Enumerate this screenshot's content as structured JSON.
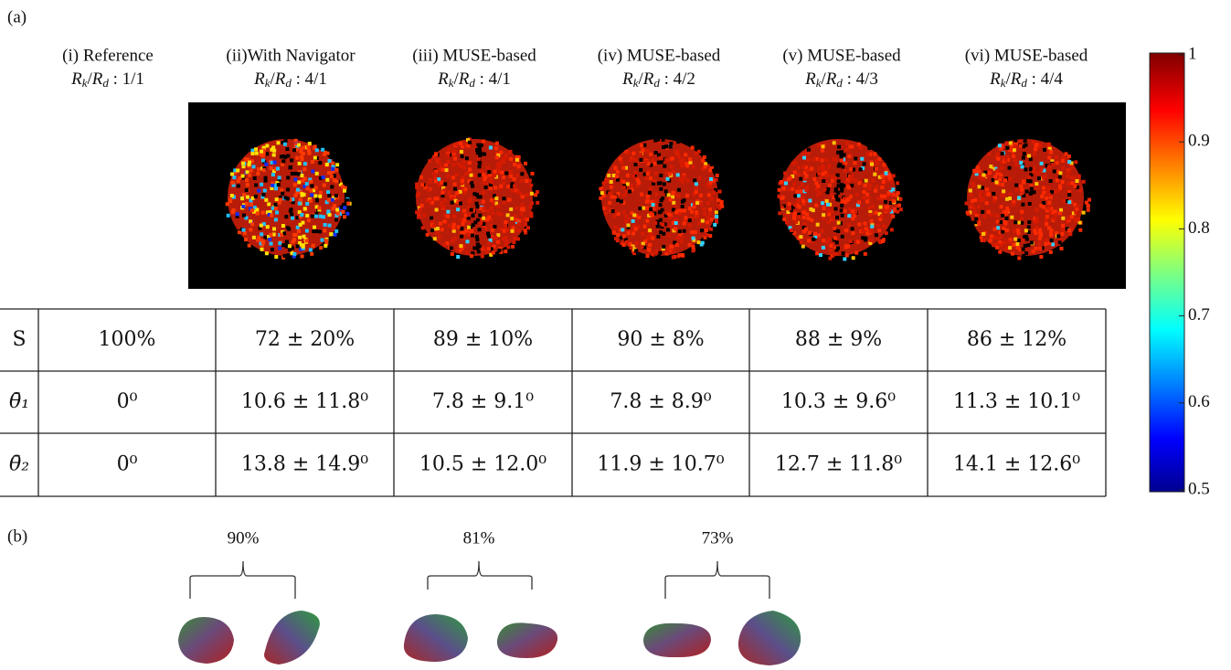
{
  "panel_a": {
    "label": "(a)",
    "ratio_symbol": [
      "R",
      "k",
      "/",
      "R",
      "d",
      " : "
    ],
    "columns": [
      {
        "title": "(i) Reference",
        "ratio": "1/1"
      },
      {
        "title": "(ii)With Navigator",
        "ratio": "4/1"
      },
      {
        "title": "(iii) MUSE-based",
        "ratio": "4/1"
      },
      {
        "title": "(iv) MUSE-based",
        "ratio": "4/2"
      },
      {
        "title": "(v) MUSE-based",
        "ratio": "4/3"
      },
      {
        "title": "(vi) MUSE-based",
        "ratio": "4/4"
      }
    ],
    "colorbar": {
      "ylim": [
        0.5,
        1
      ],
      "ticks": [
        0.5,
        0.6,
        0.7,
        0.8,
        0.9,
        1
      ]
    },
    "table": {
      "row_labels": [
        "S",
        "θ̄₁",
        "θ̄₂"
      ],
      "rows": [
        [
          "100%",
          "72 ± 20%",
          "89 ± 10%",
          "90 ± 8%",
          "88 ± 9%",
          "86 ± 12%"
        ],
        [
          "0⁰",
          "10.6 ± 11.8⁰",
          "7.8 ± 9.1⁰",
          "7.8 ± 8.9⁰",
          "10.3 ± 9.6⁰",
          "11.3 ± 10.1⁰"
        ],
        [
          "0⁰",
          "13.8 ± 14.9⁰",
          "10.5 ± 12.0⁰",
          "11.9 ± 10.7⁰",
          "12.7 ± 11.8⁰",
          "14.1 ± 12.6⁰"
        ]
      ]
    }
  },
  "panel_b": {
    "label": "(b)",
    "groups": [
      "90%",
      "81%",
      "73%"
    ]
  }
}
